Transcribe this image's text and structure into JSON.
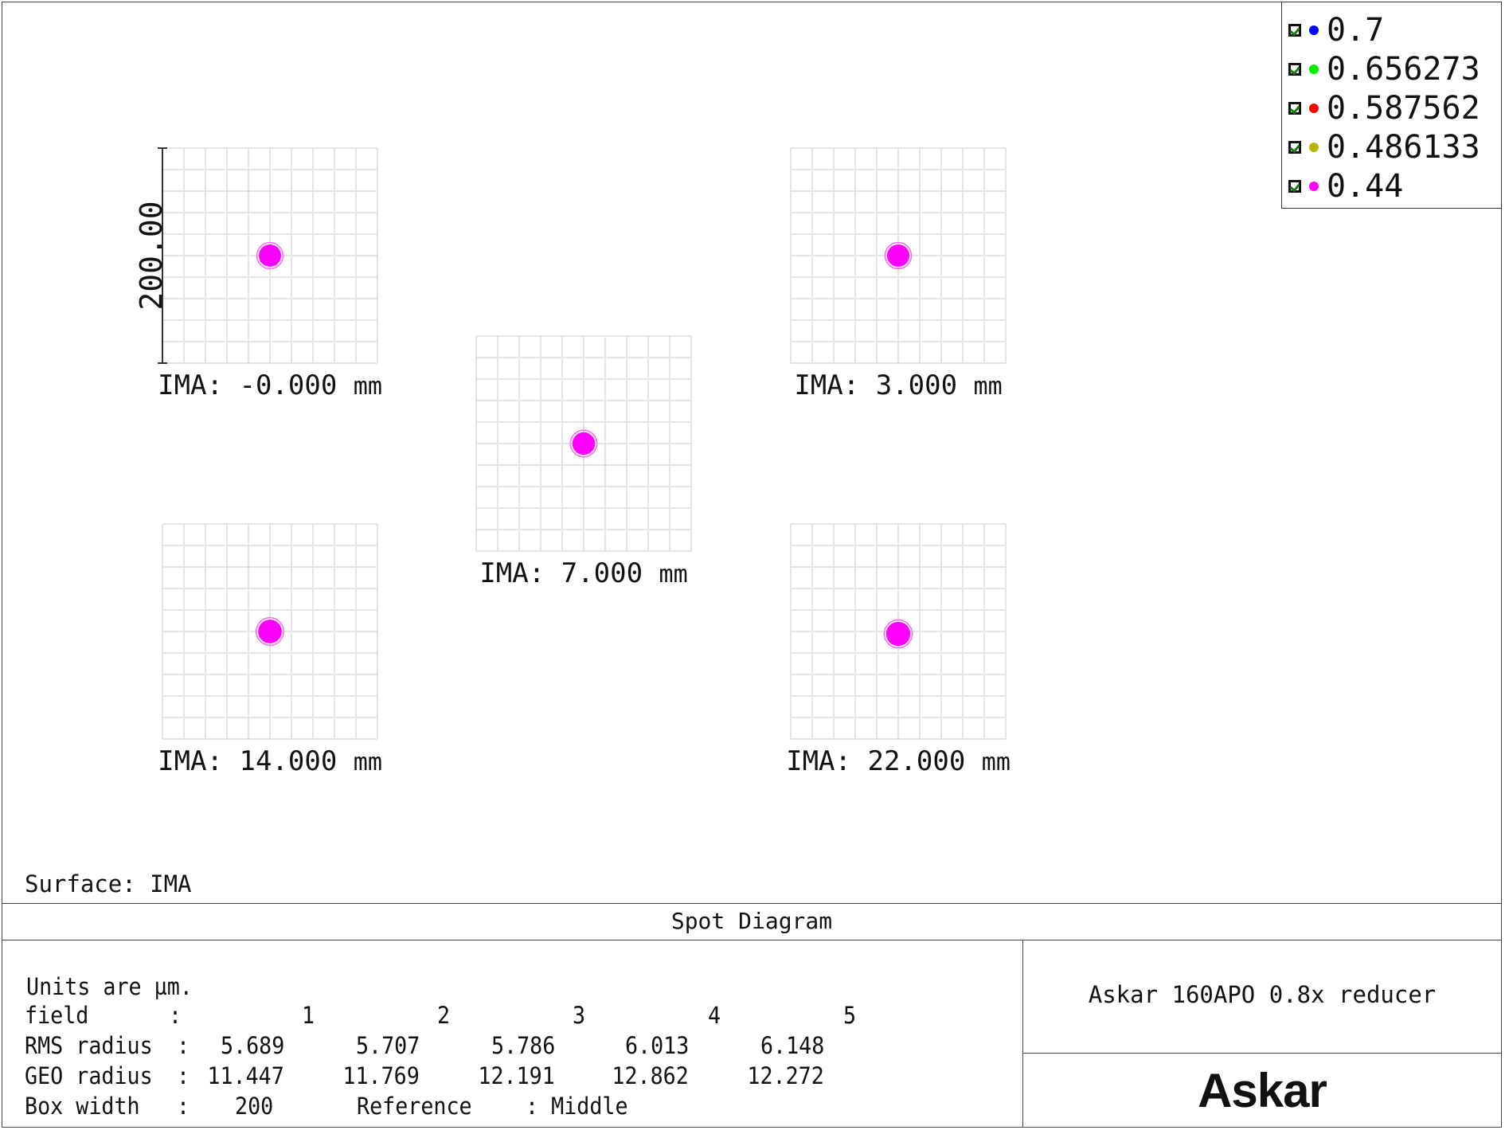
{
  "chart_data": {
    "type": "scatter",
    "title": "Spot Diagram",
    "surface_label": "Surface: IMA",
    "scale_bar_label": "200.00",
    "grid": true,
    "legend_placement": "top-right",
    "legend": [
      {
        "label": "0.7",
        "color": "#0000ff",
        "checked": true
      },
      {
        "label": "0.656273",
        "color": "#00ee00",
        "checked": true
      },
      {
        "label": "0.587562",
        "color": "#ff0000",
        "checked": true
      },
      {
        "label": "0.486133",
        "color": "#b5b500",
        "checked": true
      },
      {
        "label": "0.44",
        "color": "#ff00ff",
        "checked": true
      }
    ],
    "fields": [
      {
        "prefix": "IMA:",
        "value": "-0.000",
        "unit": "mm",
        "spot_rms": 5.689
      },
      {
        "prefix": "IMA:",
        "value": "3.000",
        "unit": "mm",
        "spot_rms": 5.707
      },
      {
        "prefix": "IMA:",
        "value": "7.000",
        "unit": "mm",
        "spot_rms": 5.786
      },
      {
        "prefix": "IMA:",
        "value": "14.000",
        "unit": "mm",
        "spot_rms": 6.013
      },
      {
        "prefix": "IMA:",
        "value": "22.000",
        "unit": "mm",
        "spot_rms": 6.148
      }
    ],
    "box_width_um": 200,
    "spot_color": "#ff00ff"
  },
  "table": {
    "units": "Units are µm.",
    "field_label": "field",
    "rms_label": "RMS radius",
    "geo_label": "GEO radius",
    "box_label": "Box width",
    "colon": ":",
    "field_numbers": [
      "1",
      "2",
      "3",
      "4",
      "5"
    ],
    "rms": [
      "5.689",
      "5.707",
      "5.786",
      "6.013",
      "6.148"
    ],
    "geo": [
      "11.447",
      "11.769",
      "12.191",
      "12.862",
      "12.272"
    ],
    "box_width": "200",
    "reference_label": "Reference",
    "reference_value": ": Middle"
  },
  "info": {
    "description": "Askar 160APO 0.8x reducer",
    "logo": "Askar"
  }
}
